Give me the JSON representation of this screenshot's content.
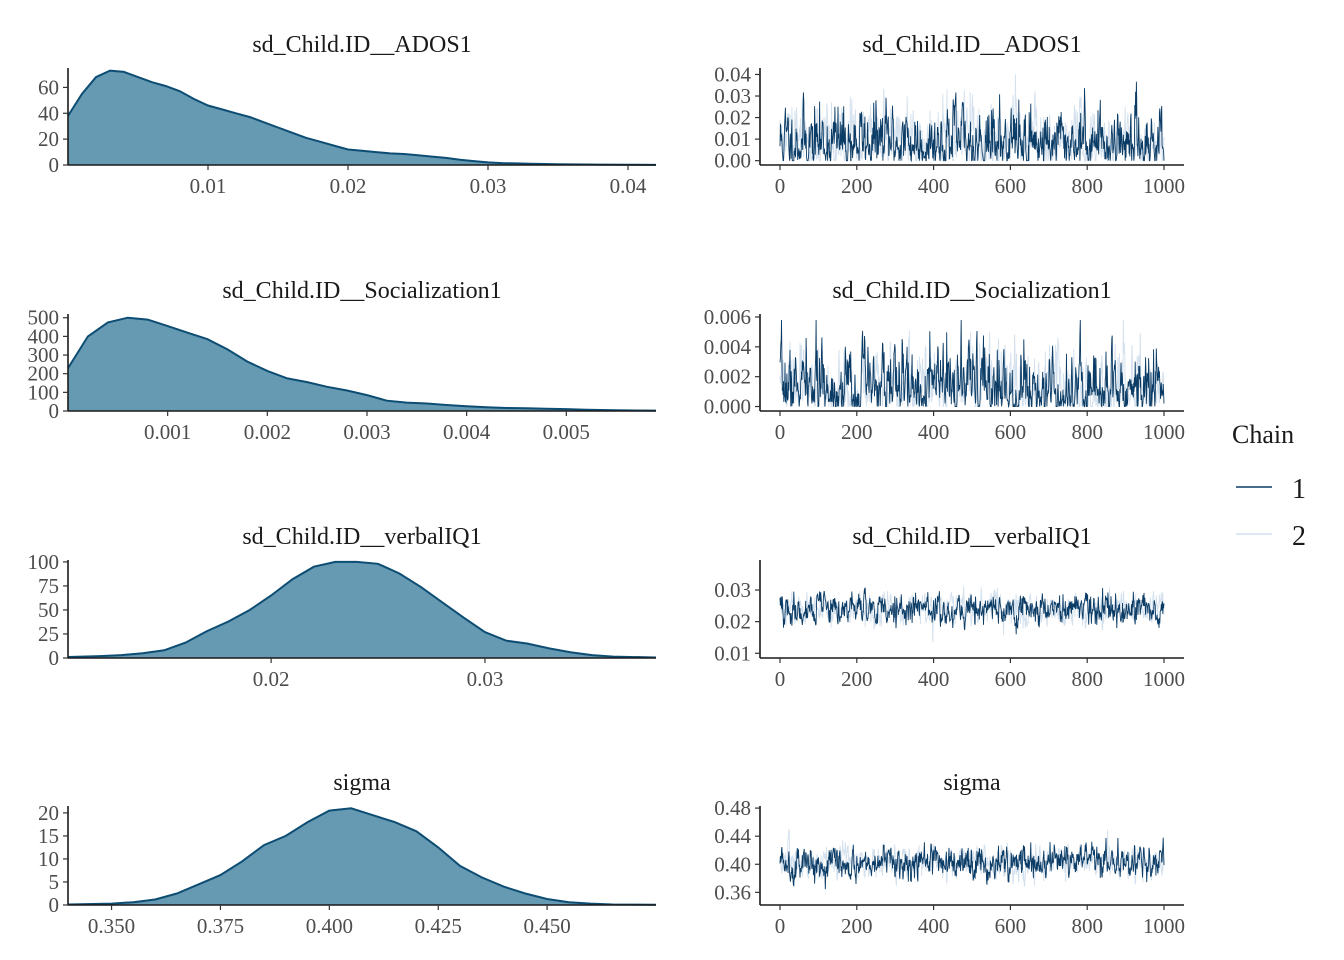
{
  "legend": {
    "title": "Chain",
    "items": [
      {
        "label": "1",
        "color": "#0b3c66"
      },
      {
        "label": "2",
        "color": "#d3e0ed"
      }
    ]
  },
  "colors": {
    "density_fill": "#6699b2",
    "density_line": "#0d4d73",
    "chain1": "#0b3c66",
    "chain2": "#d3e0ed"
  },
  "chart_data": [
    {
      "type": "area",
      "title": "sd_Child.ID__ADOS1",
      "xlim": [
        0.0,
        0.042
      ],
      "ylim": [
        0,
        75
      ],
      "x_ticks": [
        0.01,
        0.02,
        0.03,
        0.04
      ],
      "x_tick_labels": [
        "0.01",
        "0.02",
        "0.03",
        "0.04"
      ],
      "y_ticks": [
        0,
        20,
        40,
        60
      ],
      "y_tick_labels": [
        "0",
        "20",
        "40",
        "60"
      ],
      "x": [
        0.0,
        0.001,
        0.002,
        0.003,
        0.004,
        0.005,
        0.006,
        0.007,
        0.008,
        0.009,
        0.01,
        0.011,
        0.012,
        0.013,
        0.014,
        0.015,
        0.016,
        0.017,
        0.018,
        0.019,
        0.02,
        0.021,
        0.022,
        0.023,
        0.024,
        0.025,
        0.026,
        0.027,
        0.028,
        0.029,
        0.03,
        0.031,
        0.032,
        0.033,
        0.034,
        0.035,
        0.036,
        0.038,
        0.04,
        0.042
      ],
      "y": [
        38,
        55,
        68,
        73,
        72,
        68,
        64,
        61,
        57,
        51,
        46,
        43,
        40,
        37,
        33,
        29,
        25,
        21,
        18,
        15,
        12,
        11,
        10,
        9,
        8.5,
        7.5,
        6.5,
        5.5,
        4,
        3,
        2,
        1.5,
        1.2,
        1,
        0.8,
        0.6,
        0.5,
        0.3,
        0.2,
        0.1
      ]
    },
    {
      "type": "line",
      "title": "sd_Child.ID__ADOS1",
      "xlim": [
        0,
        1000
      ],
      "ylim": [
        -0.002,
        0.043
      ],
      "x_ticks": [
        0,
        200,
        400,
        600,
        800,
        1000
      ],
      "x_tick_labels": [
        "0",
        "200",
        "400",
        "600",
        "800",
        "1000"
      ],
      "y_ticks": [
        0.0,
        0.01,
        0.02,
        0.03,
        0.04
      ],
      "y_tick_labels": [
        "0.00",
        "0.01",
        "0.02",
        "0.03",
        "0.04"
      ],
      "series": [
        {
          "name": "1",
          "center": 0.008,
          "spread": 0.007,
          "min": 0.0,
          "max": 0.042,
          "seed": 11
        },
        {
          "name": "2",
          "center": 0.008,
          "spread": 0.007,
          "min": 0.0,
          "max": 0.042,
          "seed": 29
        }
      ]
    },
    {
      "type": "area",
      "title": "sd_Child.ID__Socialization1",
      "xlim": [
        0.0,
        0.0059
      ],
      "ylim": [
        0,
        520
      ],
      "x_ticks": [
        0.001,
        0.002,
        0.003,
        0.004,
        0.005
      ],
      "x_tick_labels": [
        "0.001",
        "0.002",
        "0.003",
        "0.004",
        "0.005"
      ],
      "y_ticks": [
        0,
        100,
        200,
        300,
        400,
        500
      ],
      "y_tick_labels": [
        "0",
        "100",
        "200",
        "300",
        "400",
        "500"
      ],
      "x": [
        0.0,
        0.0002,
        0.0004,
        0.0006,
        0.0008,
        0.001,
        0.0012,
        0.0014,
        0.0016,
        0.0018,
        0.002,
        0.0022,
        0.0024,
        0.0026,
        0.0028,
        0.003,
        0.0032,
        0.0034,
        0.0036,
        0.0038,
        0.004,
        0.0042,
        0.0044,
        0.0046,
        0.0048,
        0.005,
        0.0052,
        0.0055,
        0.0059
      ],
      "y": [
        230,
        400,
        475,
        500,
        490,
        455,
        420,
        385,
        330,
        265,
        215,
        175,
        155,
        130,
        110,
        85,
        55,
        45,
        40,
        32,
        25,
        20,
        16,
        15,
        12,
        10,
        7,
        4,
        2
      ]
    },
    {
      "type": "line",
      "title": "sd_Child.ID__Socialization1",
      "xlim": [
        0,
        1000
      ],
      "ylim": [
        -0.0003,
        0.0062
      ],
      "x_ticks": [
        0,
        200,
        400,
        600,
        800,
        1000
      ],
      "x_tick_labels": [
        "0",
        "200",
        "400",
        "600",
        "800",
        "1000"
      ],
      "y_ticks": [
        0.0,
        0.002,
        0.004,
        0.006
      ],
      "y_tick_labels": [
        "0.000",
        "0.002",
        "0.004",
        "0.006"
      ],
      "series": [
        {
          "name": "1",
          "center": 0.0012,
          "spread": 0.0011,
          "min": 0.0,
          "max": 0.0058,
          "seed": 7
        },
        {
          "name": "2",
          "center": 0.0012,
          "spread": 0.0011,
          "min": 0.0,
          "max": 0.0058,
          "seed": 43
        }
      ]
    },
    {
      "type": "area",
      "title": "sd_Child.ID__verbalIQ1",
      "xlim": [
        0.0105,
        0.038
      ],
      "ylim": [
        0,
        102
      ],
      "x_ticks": [
        0.02,
        0.03
      ],
      "x_tick_labels": [
        "0.02",
        "0.03"
      ],
      "y_ticks": [
        0,
        25,
        50,
        75,
        100
      ],
      "y_tick_labels": [
        "0",
        "25",
        "50",
        "75",
        "100"
      ],
      "x": [
        0.0105,
        0.012,
        0.013,
        0.014,
        0.015,
        0.016,
        0.017,
        0.018,
        0.019,
        0.02,
        0.021,
        0.022,
        0.023,
        0.024,
        0.025,
        0.026,
        0.027,
        0.028,
        0.029,
        0.03,
        0.031,
        0.032,
        0.033,
        0.034,
        0.035,
        0.036,
        0.038
      ],
      "y": [
        1,
        2,
        3,
        5,
        8,
        16,
        28,
        38,
        50,
        65,
        82,
        95,
        100,
        100,
        98,
        88,
        74,
        58,
        42,
        27,
        18,
        15,
        10,
        6,
        3,
        1.5,
        0.5
      ]
    },
    {
      "type": "line",
      "title": "sd_Child.ID__verbalIQ1",
      "xlim": [
        0,
        1000
      ],
      "ylim": [
        0.0085,
        0.0395
      ],
      "x_ticks": [
        0,
        200,
        400,
        600,
        800,
        1000
      ],
      "x_tick_labels": [
        "0",
        "200",
        "400",
        "600",
        "800",
        "1000"
      ],
      "y_ticks": [
        0.01,
        0.02,
        0.03
      ],
      "y_tick_labels": [
        "0.01",
        "0.02",
        "0.03"
      ],
      "series": [
        {
          "name": "1",
          "center": 0.024,
          "spread": 0.0045,
          "min": 0.0105,
          "max": 0.038,
          "seed": 19
        },
        {
          "name": "2",
          "center": 0.024,
          "spread": 0.0045,
          "min": 0.0105,
          "max": 0.038,
          "seed": 61
        }
      ]
    },
    {
      "type": "area",
      "title": "sigma",
      "xlim": [
        0.34,
        0.475
      ],
      "ylim": [
        0,
        21.5
      ],
      "x_ticks": [
        0.35,
        0.375,
        0.4,
        0.425,
        0.45
      ],
      "x_tick_labels": [
        "0.350",
        "0.375",
        "0.400",
        "0.425",
        "0.450"
      ],
      "y_ticks": [
        0,
        5,
        10,
        15,
        20
      ],
      "y_tick_labels": [
        "0",
        "5",
        "10",
        "15",
        "20"
      ],
      "x": [
        0.34,
        0.35,
        0.355,
        0.36,
        0.365,
        0.37,
        0.375,
        0.38,
        0.385,
        0.39,
        0.395,
        0.4,
        0.405,
        0.41,
        0.415,
        0.42,
        0.425,
        0.43,
        0.435,
        0.44,
        0.445,
        0.45,
        0.455,
        0.46,
        0.465,
        0.475
      ],
      "y": [
        0.1,
        0.3,
        0.6,
        1.2,
        2.5,
        4.5,
        6.5,
        9.5,
        13,
        15,
        18,
        20.5,
        21,
        19.5,
        18,
        16,
        12.5,
        8.5,
        6,
        4,
        2.5,
        1.3,
        0.6,
        0.3,
        0.1,
        0.05
      ]
    },
    {
      "type": "line",
      "title": "sigma",
      "xlim": [
        0,
        1000
      ],
      "ylim": [
        0.342,
        0.483
      ],
      "x_ticks": [
        0,
        200,
        400,
        600,
        800,
        1000
      ],
      "x_tick_labels": [
        "0",
        "200",
        "400",
        "600",
        "800",
        "1000"
      ],
      "y_ticks": [
        0.36,
        0.4,
        0.44,
        0.48
      ],
      "y_tick_labels": [
        "0.36",
        "0.40",
        "0.44",
        "0.48"
      ],
      "series": [
        {
          "name": "1",
          "center": 0.403,
          "spread": 0.021,
          "min": 0.344,
          "max": 0.476,
          "seed": 5
        },
        {
          "name": "2",
          "center": 0.403,
          "spread": 0.021,
          "min": 0.344,
          "max": 0.476,
          "seed": 83
        }
      ]
    }
  ]
}
